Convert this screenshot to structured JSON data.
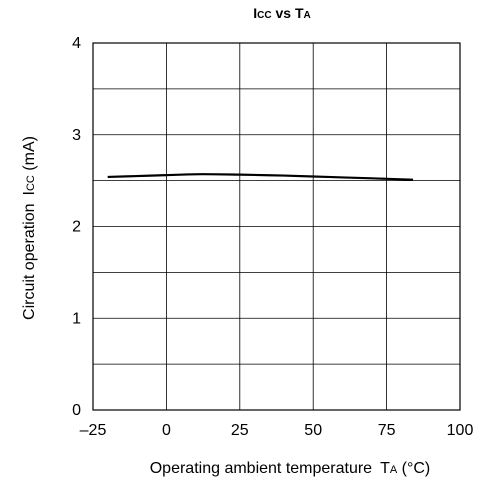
{
  "chart_data": {
    "type": "line",
    "title": "ICC vs TA",
    "title_parts": {
      "main1": "I",
      "sub1": "CC",
      "mid": " vs ",
      "main2": "T",
      "sub2": "A"
    },
    "xlabel_parts": {
      "text": "Operating ambient temperature",
      "sym": "T",
      "sub": "A",
      "unit": " (°C)"
    },
    "ylabel_parts": {
      "text": "Circuit operation",
      "sym": "I",
      "sub": "CC",
      "unit": " (mA)"
    },
    "xlim": [
      -25,
      100
    ],
    "ylim": [
      0,
      4
    ],
    "x_ticks": [
      "–25",
      "0",
      "25",
      "50",
      "75",
      "100"
    ],
    "y_ticks": [
      "0",
      "1",
      "2",
      "3",
      "4"
    ],
    "grid": true,
    "series": [
      {
        "color": "#000000",
        "points": [
          {
            "x": -20,
            "y": 2.54
          },
          {
            "x": -10,
            "y": 2.55
          },
          {
            "x": 0,
            "y": 2.56
          },
          {
            "x": 12,
            "y": 2.57
          },
          {
            "x": 25,
            "y": 2.565
          },
          {
            "x": 40,
            "y": 2.555
          },
          {
            "x": 55,
            "y": 2.54
          },
          {
            "x": 70,
            "y": 2.525
          },
          {
            "x": 84,
            "y": 2.51
          }
        ]
      }
    ]
  }
}
